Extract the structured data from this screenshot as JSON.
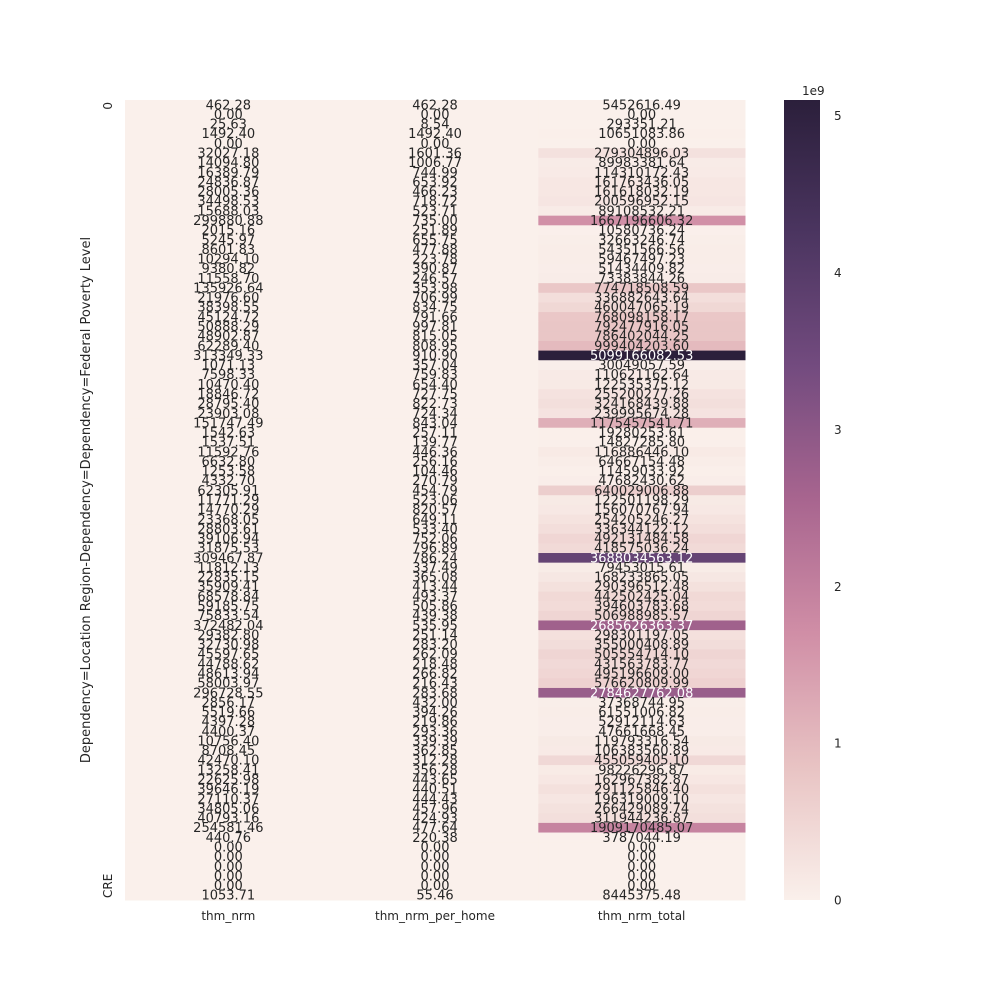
{
  "chart_data": {
    "type": "heatmap",
    "title": "",
    "xlabel": "",
    "ylabel": "Dependency=Location Region-Dependency=Dependency=Federal Poverty Level",
    "columns": [
      "thm_nrm",
      "thm_nrm_per_home",
      "thm_nrm_total"
    ],
    "rows": [
      [
        "462.28",
        "462.28",
        "5452616.49"
      ],
      [
        "0.00",
        "0.00",
        "0.00"
      ],
      [
        "25.63",
        "8.54",
        "293351.21"
      ],
      [
        "1492.40",
        "1492.40",
        "10651083.86"
      ],
      [
        "0.00",
        "0.00",
        "0.00"
      ],
      [
        "32027.18",
        "1601.36",
        "279304896.03"
      ],
      [
        "14094.80",
        "1006.77",
        "89983381.64"
      ],
      [
        "16389.79",
        "744.99",
        "114310172.43"
      ],
      [
        "24836.87",
        "653.92",
        "161763436.05"
      ],
      [
        "28005.36",
        "466.23",
        "161618032.19"
      ],
      [
        "34498.53",
        "718.72",
        "200596952.15"
      ],
      [
        "15688.03",
        "523.71",
        "89108532.21"
      ],
      [
        "299880.88",
        "735.00",
        "1667196606.32"
      ],
      [
        "2015.16",
        "251.89",
        "10580736.24"
      ],
      [
        "5245.97",
        "655.75",
        "32663246.74"
      ],
      [
        "8601.83",
        "477.88",
        "54351566.56"
      ],
      [
        "10294.10",
        "223.78",
        "59467497.23"
      ],
      [
        "9380.82",
        "390.87",
        "51434409.82"
      ],
      [
        "11558.70",
        "246.57",
        "73383844.26"
      ],
      [
        "135926.64",
        "353.98",
        "774718508.59"
      ],
      [
        "21976.60",
        "706.99",
        "336882643.64"
      ],
      [
        "38398.55",
        "834.75",
        "460047065.19"
      ],
      [
        "45124.72",
        "791.66",
        "768098158.17"
      ],
      [
        "50888.29",
        "997.81",
        "792477916.05"
      ],
      [
        "48902.87",
        "815.05",
        "786402044.25"
      ],
      [
        "62289.40",
        "808.95",
        "999404203.60"
      ],
      [
        "313349.33",
        "910.90",
        "5099166082.53"
      ],
      [
        "1071.13",
        "357.04",
        "30049057.59"
      ],
      [
        "7598.33",
        "759.83",
        "110621162.64"
      ],
      [
        "10470.40",
        "654.40",
        "122535375.12"
      ],
      [
        "18846.72",
        "727.75",
        "255200277.26"
      ],
      [
        "28795.40",
        "822.73",
        "324168439.88"
      ],
      [
        "23903.08",
        "724.34",
        "239995674.28"
      ],
      [
        "151747.49",
        "843.04",
        "1175457541.71"
      ],
      [
        "1542.63",
        "257.11",
        "19280253.61"
      ],
      [
        "1537.51",
        "139.77",
        "14827285.80"
      ],
      [
        "11592.76",
        "446.36",
        "116886446.10"
      ],
      [
        "6632.80",
        "256.16",
        "64667154.48"
      ],
      [
        "1253.58",
        "104.46",
        "11459033.92"
      ],
      [
        "4332.70",
        "270.79",
        "47682430.62"
      ],
      [
        "62305.91",
        "454.79",
        "640029006.88"
      ],
      [
        "11771.29",
        "523.06",
        "122501198.29"
      ],
      [
        "14770.29",
        "820.57",
        "156070767.94"
      ],
      [
        "23368.05",
        "649.11",
        "254205246.27"
      ],
      [
        "28803.61",
        "533.40",
        "336344122.12"
      ],
      [
        "39106.94",
        "752.06",
        "492131484.58"
      ],
      [
        "31875.53",
        "796.89",
        "418575036.24"
      ],
      [
        "309467.87",
        "786.24",
        "3688034563.12"
      ],
      [
        "11812.13",
        "337.49",
        "79453015.61"
      ],
      [
        "22835.15",
        "365.08",
        "168233865.05"
      ],
      [
        "35909.41",
        "413.44",
        "290396512.48"
      ],
      [
        "68578.84",
        "493.37",
        "442502425.04"
      ],
      [
        "59185.75",
        "505.86",
        "394603783.68"
      ],
      [
        "75833.54",
        "439.38",
        "506988985.57"
      ],
      [
        "372482.04",
        "535.95",
        "2685626363.37"
      ],
      [
        "29382.80",
        "251.14",
        "298301197.05"
      ],
      [
        "32730.98",
        "283.20",
        "355000408.89"
      ],
      [
        "45597.65",
        "262.09",
        "505554714.10"
      ],
      [
        "44788.62",
        "218.48",
        "431563783.77"
      ],
      [
        "48613.94",
        "266.82",
        "495196609.00"
      ],
      [
        "58003.97",
        "216.43",
        "576620809.99"
      ],
      [
        "296728.55",
        "283.68",
        "2784627762.08"
      ],
      [
        "2856.17",
        "432.00",
        "37368744.95"
      ],
      [
        "5519.66",
        "394.26",
        "61551006.82"
      ],
      [
        "4397.28",
        "219.86",
        "52912114.63"
      ],
      [
        "4400.37",
        "293.36",
        "47661668.45"
      ],
      [
        "10756.40",
        "339.39",
        "119793316.54"
      ],
      [
        "8708.45",
        "362.85",
        "106383560.89"
      ],
      [
        "42470.10",
        "312.28",
        "455059405.10"
      ],
      [
        "13258.41",
        "356.28",
        "98226296.87"
      ],
      [
        "22625.98",
        "443.65",
        "162967382.87"
      ],
      [
        "39646.19",
        "440.51",
        "291125846.40"
      ],
      [
        "27110.37",
        "444.43",
        "196319009.10"
      ],
      [
        "34805.06",
        "457.96",
        "266429089.74"
      ],
      [
        "40793.16",
        "424.93",
        "311944236.87"
      ],
      [
        "254581.46",
        "477.64",
        "1909170485.07"
      ],
      [
        "440.76",
        "220.38",
        "3787044.19"
      ],
      [
        "0.00",
        "0.00",
        "0.00"
      ],
      [
        "0.00",
        "0.00",
        "0.00"
      ],
      [
        "0.00",
        "0.00",
        "0.00"
      ],
      [
        "0.00",
        "0.00",
        "0.00"
      ],
      [
        "0.00",
        "0.00",
        "0.00"
      ],
      [
        "1053.71",
        "55.46",
        "8445375.48"
      ]
    ],
    "color_scale": {
      "min": 0,
      "max": 5.1,
      "ticks": [
        "0",
        "1",
        "2",
        "3",
        "4",
        "5"
      ],
      "multiplier": "1e9",
      "colors": [
        "#faf0eb",
        "#e8c3c3",
        "#d08ea6",
        "#a8658f",
        "#734b7f",
        "#4b3560",
        "#2b1f3b"
      ]
    },
    "first_row_label": "0",
    "last_row_label": "CRE"
  }
}
